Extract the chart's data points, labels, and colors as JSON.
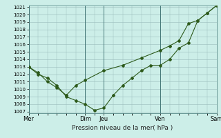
{
  "xlabel": "Pression niveau de la mer( hPa )",
  "bg_color": "#cceee8",
  "grid_color": "#aacccc",
  "line_color": "#2d5a1b",
  "ylim": [
    1007,
    1021
  ],
  "yticks": [
    1007,
    1008,
    1009,
    1010,
    1011,
    1012,
    1013,
    1014,
    1015,
    1016,
    1017,
    1018,
    1019,
    1020,
    1021
  ],
  "xtick_labels": [
    "Mer",
    "Dim",
    "Jeu",
    "Ven",
    "Sam"
  ],
  "xtick_positions": [
    0,
    6,
    8,
    14,
    20
  ],
  "vline_positions": [
    0,
    6,
    8,
    14,
    20
  ],
  "series1_x": [
    0,
    1,
    2,
    3,
    4,
    5,
    6,
    7,
    8,
    9,
    10,
    11,
    12,
    13,
    14,
    15,
    16,
    17,
    18,
    19,
    20
  ],
  "series1_y": [
    1013,
    1012,
    1011.5,
    1010.5,
    1009,
    1008.5,
    1008,
    1007.2,
    1007.5,
    1009.2,
    1010.5,
    1011.5,
    1012.5,
    1013.2,
    1013.2,
    1014.0,
    1015.5,
    1016.2,
    1019.2,
    1020.2,
    1021.2
  ],
  "series2_x": [
    0,
    1,
    2,
    3,
    4,
    5,
    6,
    8,
    10,
    12,
    14,
    15,
    16,
    17,
    18,
    19,
    20
  ],
  "series2_y": [
    1013,
    1012.2,
    1011.0,
    1010.2,
    1009.2,
    1010.5,
    1011.2,
    1012.5,
    1013.2,
    1014.2,
    1015.2,
    1015.8,
    1016.5,
    1018.8,
    1019.2,
    1020.2,
    1021.2
  ]
}
